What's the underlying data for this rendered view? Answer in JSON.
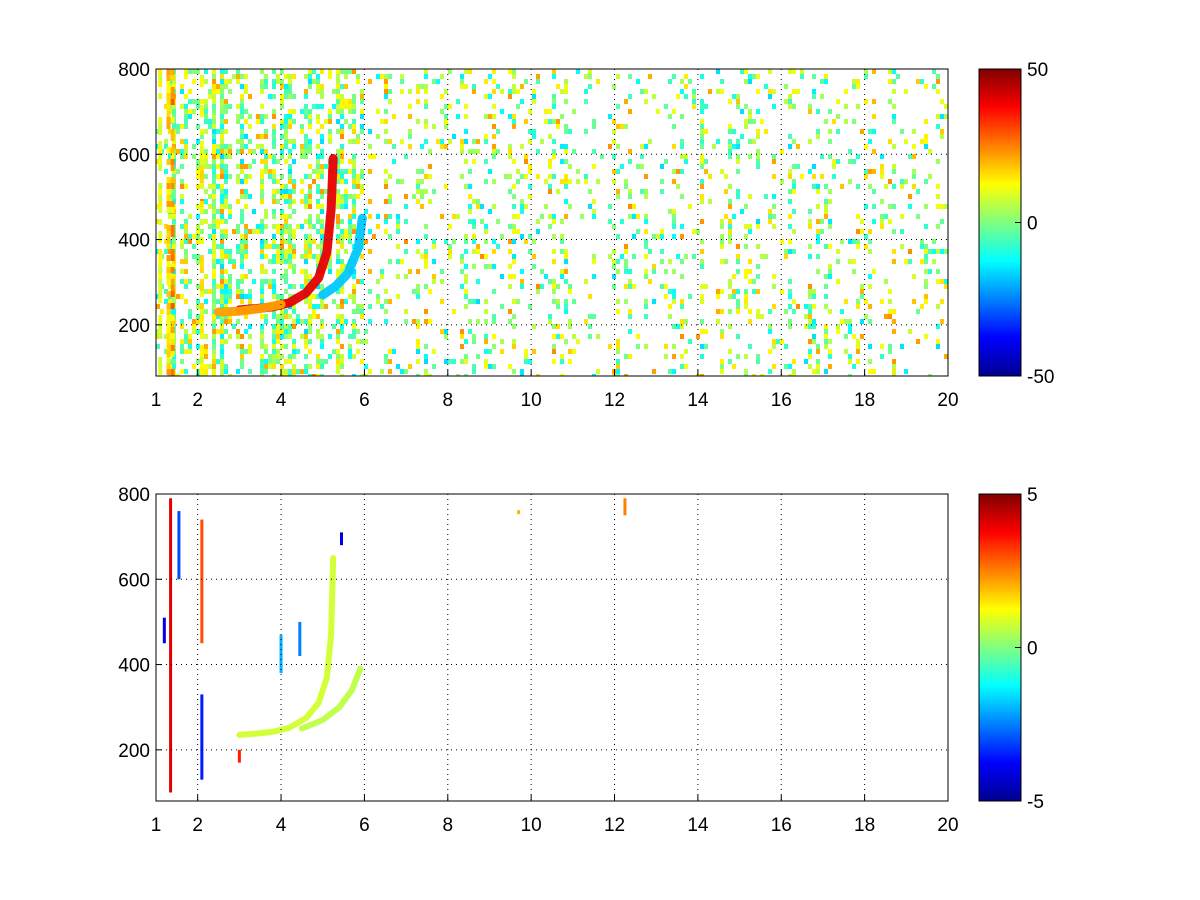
{
  "figure": {
    "background": "#ffffff",
    "colormap": "jet"
  },
  "chart_data": [
    {
      "type": "heatmap",
      "title": "",
      "xlabel": "",
      "ylabel": "",
      "xlim": [
        1,
        20
      ],
      "ylim": [
        80,
        800
      ],
      "xticks": [
        1,
        2,
        4,
        6,
        8,
        10,
        12,
        14,
        16,
        18,
        20
      ],
      "xtick_labels": [
        "1",
        "2",
        "4",
        "6",
        "8",
        "10",
        "12",
        "14",
        "16",
        "18",
        "20"
      ],
      "yticks": [
        200,
        400,
        600,
        800
      ],
      "ytick_labels": [
        "200",
        "400",
        "600",
        "800"
      ],
      "grid": true,
      "clim": [
        -50,
        50
      ],
      "colorbar_ticks": [
        -50,
        0,
        50
      ],
      "colorbar_labels": [
        "-50",
        "0",
        "50"
      ],
      "features": [
        {
          "kind": "curve",
          "value": 40,
          "x": [
            3.0,
            3.4,
            3.8,
            4.2,
            4.6,
            4.9,
            5.1,
            5.2,
            5.25
          ],
          "y": [
            235,
            238,
            242,
            252,
            275,
            310,
            370,
            470,
            590
          ]
        },
        {
          "kind": "curve",
          "value": -18,
          "x": [
            5.0,
            5.3,
            5.6,
            5.85,
            5.95
          ],
          "y": [
            270,
            290,
            320,
            380,
            450
          ]
        },
        {
          "kind": "curve",
          "value": 22,
          "x": [
            2.5,
            3.0,
            3.5,
            4.0
          ],
          "y": [
            230,
            232,
            238,
            248
          ]
        },
        {
          "kind": "band",
          "value": 20,
          "x": 1.3,
          "y": [
            80,
            800
          ]
        },
        {
          "kind": "band",
          "value": 25,
          "x": 1.4,
          "y": [
            80,
            800
          ]
        },
        {
          "kind": "band",
          "value": 12,
          "x": 1.1,
          "y": [
            80,
            800
          ]
        },
        {
          "kind": "band",
          "value": 15,
          "x": 2.1,
          "y": [
            80,
            800
          ]
        }
      ]
    },
    {
      "type": "heatmap",
      "title": "",
      "xlabel": "",
      "ylabel": "",
      "xlim": [
        1,
        20
      ],
      "ylim": [
        80,
        800
      ],
      "xticks": [
        1,
        2,
        4,
        6,
        8,
        10,
        12,
        14,
        16,
        18,
        20
      ],
      "xtick_labels": [
        "1",
        "2",
        "4",
        "6",
        "8",
        "10",
        "12",
        "14",
        "16",
        "18",
        "20"
      ],
      "yticks": [
        200,
        400,
        600,
        800
      ],
      "ytick_labels": [
        "200",
        "400",
        "600",
        "800"
      ],
      "grid": true,
      "clim": [
        -5,
        5
      ],
      "colorbar_ticks": [
        -5,
        0,
        5
      ],
      "colorbar_labels": [
        "-5",
        "0",
        "5"
      ],
      "features": [
        {
          "kind": "curve",
          "value": 0.8,
          "x": [
            3.0,
            3.4,
            3.8,
            4.2,
            4.6,
            4.9,
            5.1,
            5.2,
            5.25
          ],
          "y": [
            235,
            238,
            242,
            252,
            275,
            310,
            370,
            470,
            650
          ]
        },
        {
          "kind": "curve",
          "value": 0.6,
          "x": [
            4.5,
            5.0,
            5.4,
            5.7,
            5.9
          ],
          "y": [
            250,
            270,
            300,
            340,
            390
          ]
        },
        {
          "kind": "spot",
          "value": 4,
          "x": 1.35,
          "y": [
            100,
            790
          ]
        },
        {
          "kind": "spot",
          "value": -4,
          "x": 1.2,
          "y": [
            450,
            510
          ]
        },
        {
          "kind": "spot",
          "value": -3,
          "x": 1.55,
          "y": [
            600,
            760
          ]
        },
        {
          "kind": "spot",
          "value": 3,
          "x": 2.1,
          "y": [
            450,
            740
          ]
        },
        {
          "kind": "spot",
          "value": -3.5,
          "x": 2.1,
          "y": [
            130,
            330
          ]
        },
        {
          "kind": "spot",
          "value": -2,
          "x": 4.0,
          "y": [
            380,
            470
          ]
        },
        {
          "kind": "spot",
          "value": -2.5,
          "x": 4.45,
          "y": [
            420,
            500
          ]
        },
        {
          "kind": "spot",
          "value": -4,
          "x": 5.45,
          "y": [
            680,
            710
          ]
        },
        {
          "kind": "spot",
          "value": 2,
          "x": 9.7,
          "y": [
            755,
            762
          ]
        },
        {
          "kind": "spot",
          "value": 2.5,
          "x": 12.25,
          "y": [
            750,
            790
          ]
        },
        {
          "kind": "spot",
          "value": 3.5,
          "x": 3.0,
          "y": [
            170,
            200
          ]
        }
      ]
    }
  ]
}
